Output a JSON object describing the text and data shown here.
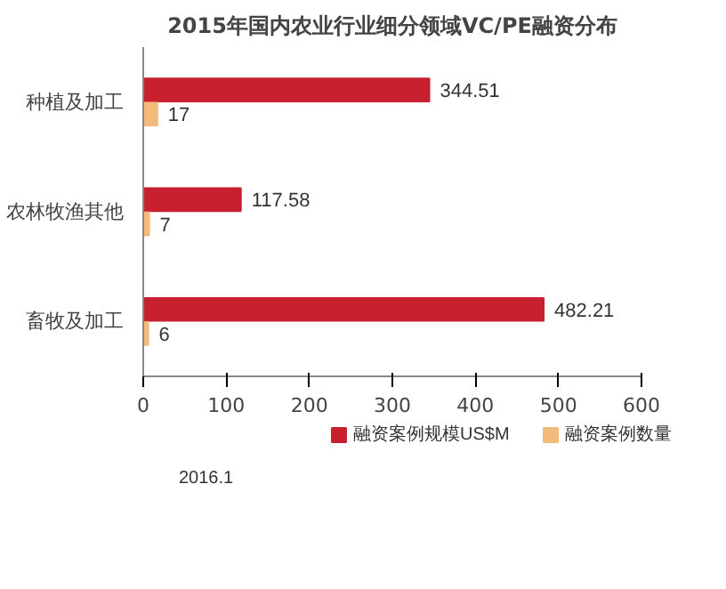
{
  "chart_data": {
    "type": "bar",
    "orientation": "horizontal",
    "title": "2015年国内农业行业细分领域VC/PE融资分布",
    "categories": [
      "种植及加工",
      "农林牧渔其他",
      "畜牧及加工"
    ],
    "series": [
      {
        "name": "融资案例规模US$M",
        "color": "#c8202f",
        "values": [
          344.51,
          117.58,
          482.21
        ]
      },
      {
        "name": "融资案例数量",
        "color": "#f2bb7c",
        "values": [
          17,
          7,
          6
        ]
      }
    ],
    "xlim": [
      0,
      600
    ],
    "xticks": [
      0,
      100,
      200,
      300,
      400,
      500,
      600
    ],
    "grid": false,
    "legend": "bottom",
    "data_labels": true,
    "annotations": [
      "2016.1"
    ]
  }
}
